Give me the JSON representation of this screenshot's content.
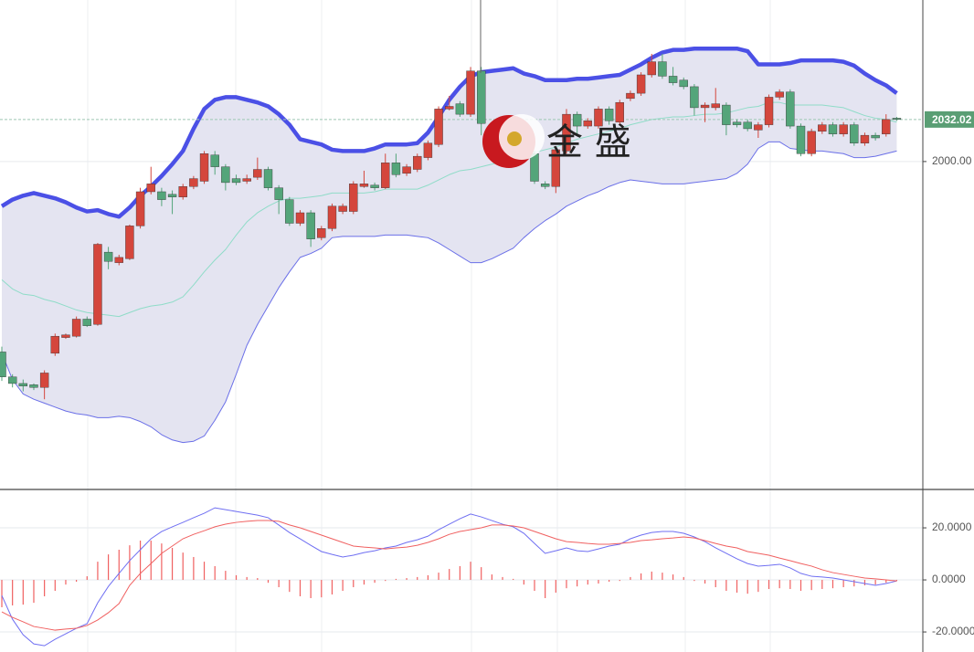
{
  "chart_data": [
    {
      "type": "candlestick",
      "categories": [
        null,
        null,
        null,
        null,
        null,
        null,
        null,
        null,
        null,
        null,
        null,
        null,
        null,
        null,
        null,
        null,
        null,
        null,
        null,
        null,
        null,
        null,
        null,
        null,
        null,
        null,
        null,
        null,
        null,
        null,
        null,
        null,
        null,
        null,
        null,
        null,
        null,
        null,
        null,
        null,
        null,
        null,
        null,
        null,
        null,
        null,
        null,
        null,
        null,
        null,
        null,
        null,
        null,
        null,
        null,
        null,
        null,
        null,
        null,
        null,
        null,
        null,
        null,
        null,
        null,
        null,
        null,
        null,
        null,
        null,
        null,
        null,
        null,
        null,
        null,
        null,
        null,
        null,
        null,
        null,
        null,
        null,
        null,
        null,
        null
      ],
      "open": [
        1855,
        1836,
        1831,
        1830,
        1828,
        1854,
        1866,
        1867,
        1880,
        1876,
        1931,
        1923,
        1926,
        1951,
        1977,
        1977,
        1975,
        1973,
        1981,
        1985,
        2005,
        1996,
        1987,
        1985,
        1988,
        1994,
        1980,
        1971,
        1953,
        1961,
        1942,
        1949,
        1962,
        1962,
        1981,
        1982,
        1980,
        1999,
        1991,
        1994,
        2003,
        2013,
        2040,
        2044,
        2036,
        2069,
        2026,
        2019,
        2019,
        2026,
        2006,
        1983,
        1981,
        2008,
        2036,
        2027,
        2027,
        2040,
        2030,
        2048,
        2052,
        2066,
        2076,
        2065,
        2062,
        2057,
        2041,
        2041,
        2043,
        2030,
        2030,
        2024,
        2028,
        2049,
        2053,
        2027,
        2006,
        2023,
        2028,
        2021,
        2028,
        2014,
        2020,
        2021,
        2033
      ],
      "high": [
        1859,
        1838,
        1834,
        1831,
        1841,
        1869,
        1869,
        1882,
        1882,
        1938,
        1935,
        1929,
        1952,
        1980,
        1996,
        1980,
        1978,
        1983,
        1989,
        2008,
        2008,
        1998,
        1990,
        1990,
        2003,
        1996,
        1982,
        1973,
        1963,
        1963,
        1951,
        1968,
        1968,
        1985,
        1993,
        1984,
        2006,
        2006,
        1998,
        2006,
        2016,
        2042,
        2050,
        2046,
        2072,
        2072,
        2028,
        2028,
        2030,
        2030,
        2008,
        1985,
        2011,
        2040,
        2038,
        2033,
        2042,
        2042,
        2047,
        2054,
        2068,
        2082,
        2082,
        2072,
        2064,
        2059,
        2045,
        2056,
        2045,
        2032,
        2032,
        2030,
        2051,
        2055,
        2055,
        2029,
        2025,
        2030,
        2030,
        2030,
        2030,
        2022,
        2022,
        2036,
        2034
      ],
      "low": [
        1833,
        1828,
        1825,
        1826,
        1819,
        1852,
        1865,
        1866,
        1874,
        1875,
        1918,
        1921,
        1925,
        1949,
        1975,
        1966,
        1960,
        1971,
        1979,
        1983,
        1990,
        1978,
        1982,
        1983,
        1986,
        1978,
        1960,
        1951,
        1951,
        1935,
        1940,
        1947,
        1960,
        1960,
        1980,
        1978,
        1979,
        1988,
        1989,
        1992,
        2001,
        2011,
        2039,
        2034,
        2034,
        2020,
        2017,
        2017,
        2017,
        2004,
        1983,
        1979,
        1976,
        2006,
        2020,
        2025,
        2025,
        2028,
        2028,
        2046,
        2050,
        2064,
        2063,
        2058,
        2055,
        2035,
        2030,
        2039,
        2020,
        2026,
        2023,
        2018,
        2026,
        2047,
        2025,
        2004,
        2004,
        2021,
        2019,
        2019,
        2012,
        2012,
        2016,
        2019,
        2031
      ],
      "close": [
        1836,
        1831,
        1829,
        1828,
        1839,
        1867,
        1868,
        1880,
        1875,
        1937,
        1924,
        1927,
        1951,
        1977,
        1983,
        1971,
        1973,
        1981,
        1987,
        2006,
        1996,
        1984,
        1984,
        1987,
        1994,
        1980,
        1971,
        1953,
        1961,
        1941,
        1949,
        1966,
        1966,
        1983,
        1983,
        1980,
        1999,
        1990,
        1996,
        2004,
        2014,
        2040,
        2042,
        2036,
        2069,
        2029,
        2019,
        2026,
        2026,
        2006,
        1985,
        1981,
        2009,
        2036,
        2027,
        2031,
        2040,
        2031,
        2045,
        2052,
        2066,
        2076,
        2065,
        2060,
        2057,
        2041,
        2043,
        2044,
        2028,
        2028,
        2025,
        2028,
        2049,
        2053,
        2027,
        2006,
        2023,
        2028,
        2021,
        2028,
        2014,
        2020,
        2018,
        2032,
        2032.02
      ],
      "up_color": "#d4463c",
      "down_color": "#54a57a",
      "bands": [
        {
          "color": "#4b50e6",
          "values": [
            1966,
            1971,
            1974,
            1976,
            1974,
            1972,
            1969,
            1965,
            1962,
            1963,
            1960,
            1958,
            1965,
            1974,
            1981,
            1989,
            1998,
            2008,
            2025,
            2040,
            2047,
            2049,
            2049,
            2047,
            2045,
            2042,
            2036,
            2028,
            2017,
            2015,
            2013,
            2009,
            2008,
            2008,
            2008,
            2010,
            2013,
            2013,
            2013,
            2014,
            2022,
            2034,
            2047,
            2057,
            2065,
            2068,
            2069,
            2070,
            2071,
            2067,
            2065,
            2062,
            2062,
            2062,
            2063,
            2063,
            2064,
            2065,
            2066,
            2070,
            2074,
            2079,
            2083,
            2085,
            2085,
            2086,
            2086,
            2086,
            2086,
            2086,
            2084,
            2074,
            2074,
            2074,
            2075,
            2077,
            2077,
            2077,
            2077,
            2076,
            2073,
            2067,
            2062,
            2058,
            2052
          ]
        },
        {
          "color": "#8fdcc8",
          "values": [
            1910,
            1903,
            1899,
            1898,
            1895,
            1893,
            1890,
            1887,
            1885,
            1884,
            1883,
            1882,
            1885,
            1888,
            1890,
            1891,
            1893,
            1897,
            1906,
            1916,
            1925,
            1933,
            1944,
            1954,
            1961,
            1966,
            1970,
            1972,
            1972,
            1973,
            1974,
            1976,
            1976,
            1976,
            1976,
            1977,
            1979,
            1979,
            1979,
            1979,
            1982,
            1986,
            1990,
            1993,
            1994,
            1996,
            1998,
            2000,
            2003,
            2005,
            2007,
            2009,
            2011,
            2014,
            2017,
            2019,
            2021,
            2023,
            2025,
            2028,
            2030,
            2032,
            2033,
            2034,
            2034,
            2035,
            2036,
            2036,
            2037,
            2039,
            2041,
            2042,
            2045,
            2045,
            2043,
            2043,
            2043,
            2043,
            2042,
            2041,
            2038,
            2035,
            2033,
            2032,
            2030
          ]
        },
        {
          "color": "#6a6fe8",
          "values": [
            1854,
            1834,
            1823,
            1819,
            1816,
            1813,
            1810,
            1808,
            1807,
            1805,
            1805,
            1806,
            1805,
            1802,
            1798,
            1792,
            1788,
            1786,
            1787,
            1791,
            1803,
            1817,
            1838,
            1860,
            1876,
            1890,
            1904,
            1916,
            1927,
            1930,
            1934,
            1942,
            1943,
            1943,
            1943,
            1943,
            1944,
            1944,
            1944,
            1943,
            1942,
            1938,
            1933,
            1928,
            1923,
            1923,
            1926,
            1930,
            1934,
            1942,
            1949,
            1955,
            1960,
            1966,
            1970,
            1974,
            1977,
            1981,
            1984,
            1986,
            1985,
            1984,
            1983,
            1983,
            1983,
            1984,
            1985,
            1986,
            1987,
            1991,
            1998,
            2010,
            2015,
            2015,
            2010,
            2009,
            2008,
            2008,
            2007,
            2006,
            2003,
            2003,
            2004,
            2006,
            2008
          ]
        }
      ],
      "band_fill": "#e4e4f1",
      "ylim": [
        1751,
        2123
      ],
      "yticks": [
        {
          "value": 2000,
          "label": "2000.00"
        }
      ],
      "last_price": {
        "value": 2032.02,
        "label": "2032.02"
      },
      "last_price_color": "#5a9e74",
      "watermark": "金 盛"
    },
    {
      "type": "macd",
      "categories": [
        null,
        null,
        null,
        null,
        null,
        null,
        null,
        null,
        null,
        null,
        null,
        null,
        null,
        null,
        null,
        null,
        null,
        null,
        null,
        null,
        null,
        null,
        null,
        null,
        null,
        null,
        null,
        null,
        null,
        null,
        null,
        null,
        null,
        null,
        null,
        null,
        null,
        null,
        null,
        null,
        null,
        null,
        null,
        null,
        null,
        null,
        null,
        null,
        null,
        null,
        null,
        null,
        null,
        null,
        null,
        null,
        null,
        null,
        null,
        null,
        null,
        null,
        null,
        null,
        null,
        null,
        null,
        null,
        null,
        null,
        null,
        null,
        null,
        null,
        null,
        null,
        null,
        null,
        null,
        null,
        null,
        null,
        null,
        null,
        null
      ],
      "lines": [
        {
          "color": "#6f6ff2",
          "values": [
            -6.0,
            -15.1,
            -21.1,
            -24.6,
            -25.3,
            -22.8,
            -20.7,
            -18.6,
            -16.8,
            -8.8,
            -2.5,
            2.5,
            7.4,
            11.6,
            15.8,
            18.6,
            20.4,
            22.1,
            23.9,
            25.6,
            27.7,
            27.0,
            26.3,
            25.6,
            24.9,
            23.9,
            21.1,
            18.2,
            15.8,
            13.3,
            10.9,
            9.8,
            8.8,
            9.5,
            10.5,
            11.2,
            12.3,
            13.0,
            14.4,
            15.4,
            16.8,
            19.3,
            21.4,
            23.5,
            25.3,
            24.2,
            22.8,
            21.4,
            20.4,
            17.9,
            14.0,
            10.2,
            11.2,
            12.3,
            11.2,
            10.9,
            11.9,
            13.0,
            13.7,
            15.8,
            17.2,
            18.2,
            18.6,
            18.6,
            17.9,
            16.5,
            14.7,
            12.3,
            10.2,
            8.1,
            6.3,
            5.3,
            5.6,
            6.0,
            4.6,
            2.5,
            1.4,
            1.1,
            0.7,
            0.0,
            -0.7,
            -1.4,
            -2.1,
            -1.4,
            -0.4
          ]
        },
        {
          "color": "#f06060",
          "values": [
            -12.3,
            -14.4,
            -16.1,
            -17.9,
            -18.6,
            -19.3,
            -18.9,
            -18.6,
            -17.5,
            -15.4,
            -12.6,
            -9.1,
            -2.1,
            2.5,
            6.3,
            10.2,
            13.0,
            15.8,
            17.5,
            18.9,
            20.4,
            21.4,
            22.1,
            22.5,
            22.8,
            22.8,
            22.5,
            21.1,
            20.0,
            18.6,
            17.2,
            15.8,
            14.4,
            13.0,
            12.6,
            12.3,
            11.9,
            12.3,
            12.6,
            13.3,
            14.4,
            15.8,
            17.5,
            18.6,
            19.3,
            20.0,
            21.1,
            21.1,
            20.7,
            20.0,
            18.6,
            17.2,
            15.8,
            14.7,
            14.4,
            14.0,
            13.7,
            13.7,
            14.0,
            14.4,
            15.1,
            15.4,
            15.8,
            16.1,
            16.5,
            16.1,
            15.1,
            14.0,
            13.0,
            12.3,
            10.9,
            10.2,
            9.5,
            8.4,
            7.4,
            6.3,
            5.3,
            3.9,
            2.8,
            2.1,
            1.4,
            0.7,
            0.4,
            0.0,
            -0.4
          ]
        }
      ],
      "histogram": {
        "color": "#f06060",
        "values": [
          -10.5,
          -9.8,
          -9.5,
          -8.8,
          -6.3,
          -4.2,
          -1.8,
          -0.7,
          1.4,
          7.0,
          9.8,
          11.6,
          13.3,
          15.1,
          15.1,
          14.0,
          12.3,
          10.5,
          8.8,
          7.0,
          5.3,
          3.5,
          1.8,
          1.1,
          0.7,
          -1.1,
          -2.8,
          -4.6,
          -6.3,
          -7.0,
          -6.7,
          -5.6,
          -4.2,
          -2.8,
          -1.8,
          -1.1,
          -0.4,
          0.4,
          0.7,
          1.1,
          1.8,
          2.8,
          4.2,
          5.3,
          7.0,
          4.9,
          2.1,
          1.1,
          0.4,
          -1.8,
          -4.2,
          -7.0,
          -4.9,
          -3.2,
          -2.5,
          -1.8,
          -1.4,
          -0.7,
          -0.4,
          1.1,
          2.5,
          3.2,
          2.8,
          2.1,
          1.1,
          -0.4,
          -1.4,
          -2.8,
          -4.2,
          -4.9,
          -5.3,
          -4.6,
          -3.5,
          -3.2,
          -3.5,
          -4.2,
          -3.9,
          -3.5,
          -3.2,
          -2.8,
          -2.5,
          -2.1,
          -1.8,
          -1.1,
          -0.4
        ]
      },
      "ylim": [
        -27.7,
        34.4
      ],
      "yticks": [
        {
          "value": 20,
          "label": "20.0000"
        },
        {
          "value": 0,
          "label": "0.0000"
        },
        {
          "value": -20,
          "label": "-20.0000"
        }
      ]
    }
  ]
}
